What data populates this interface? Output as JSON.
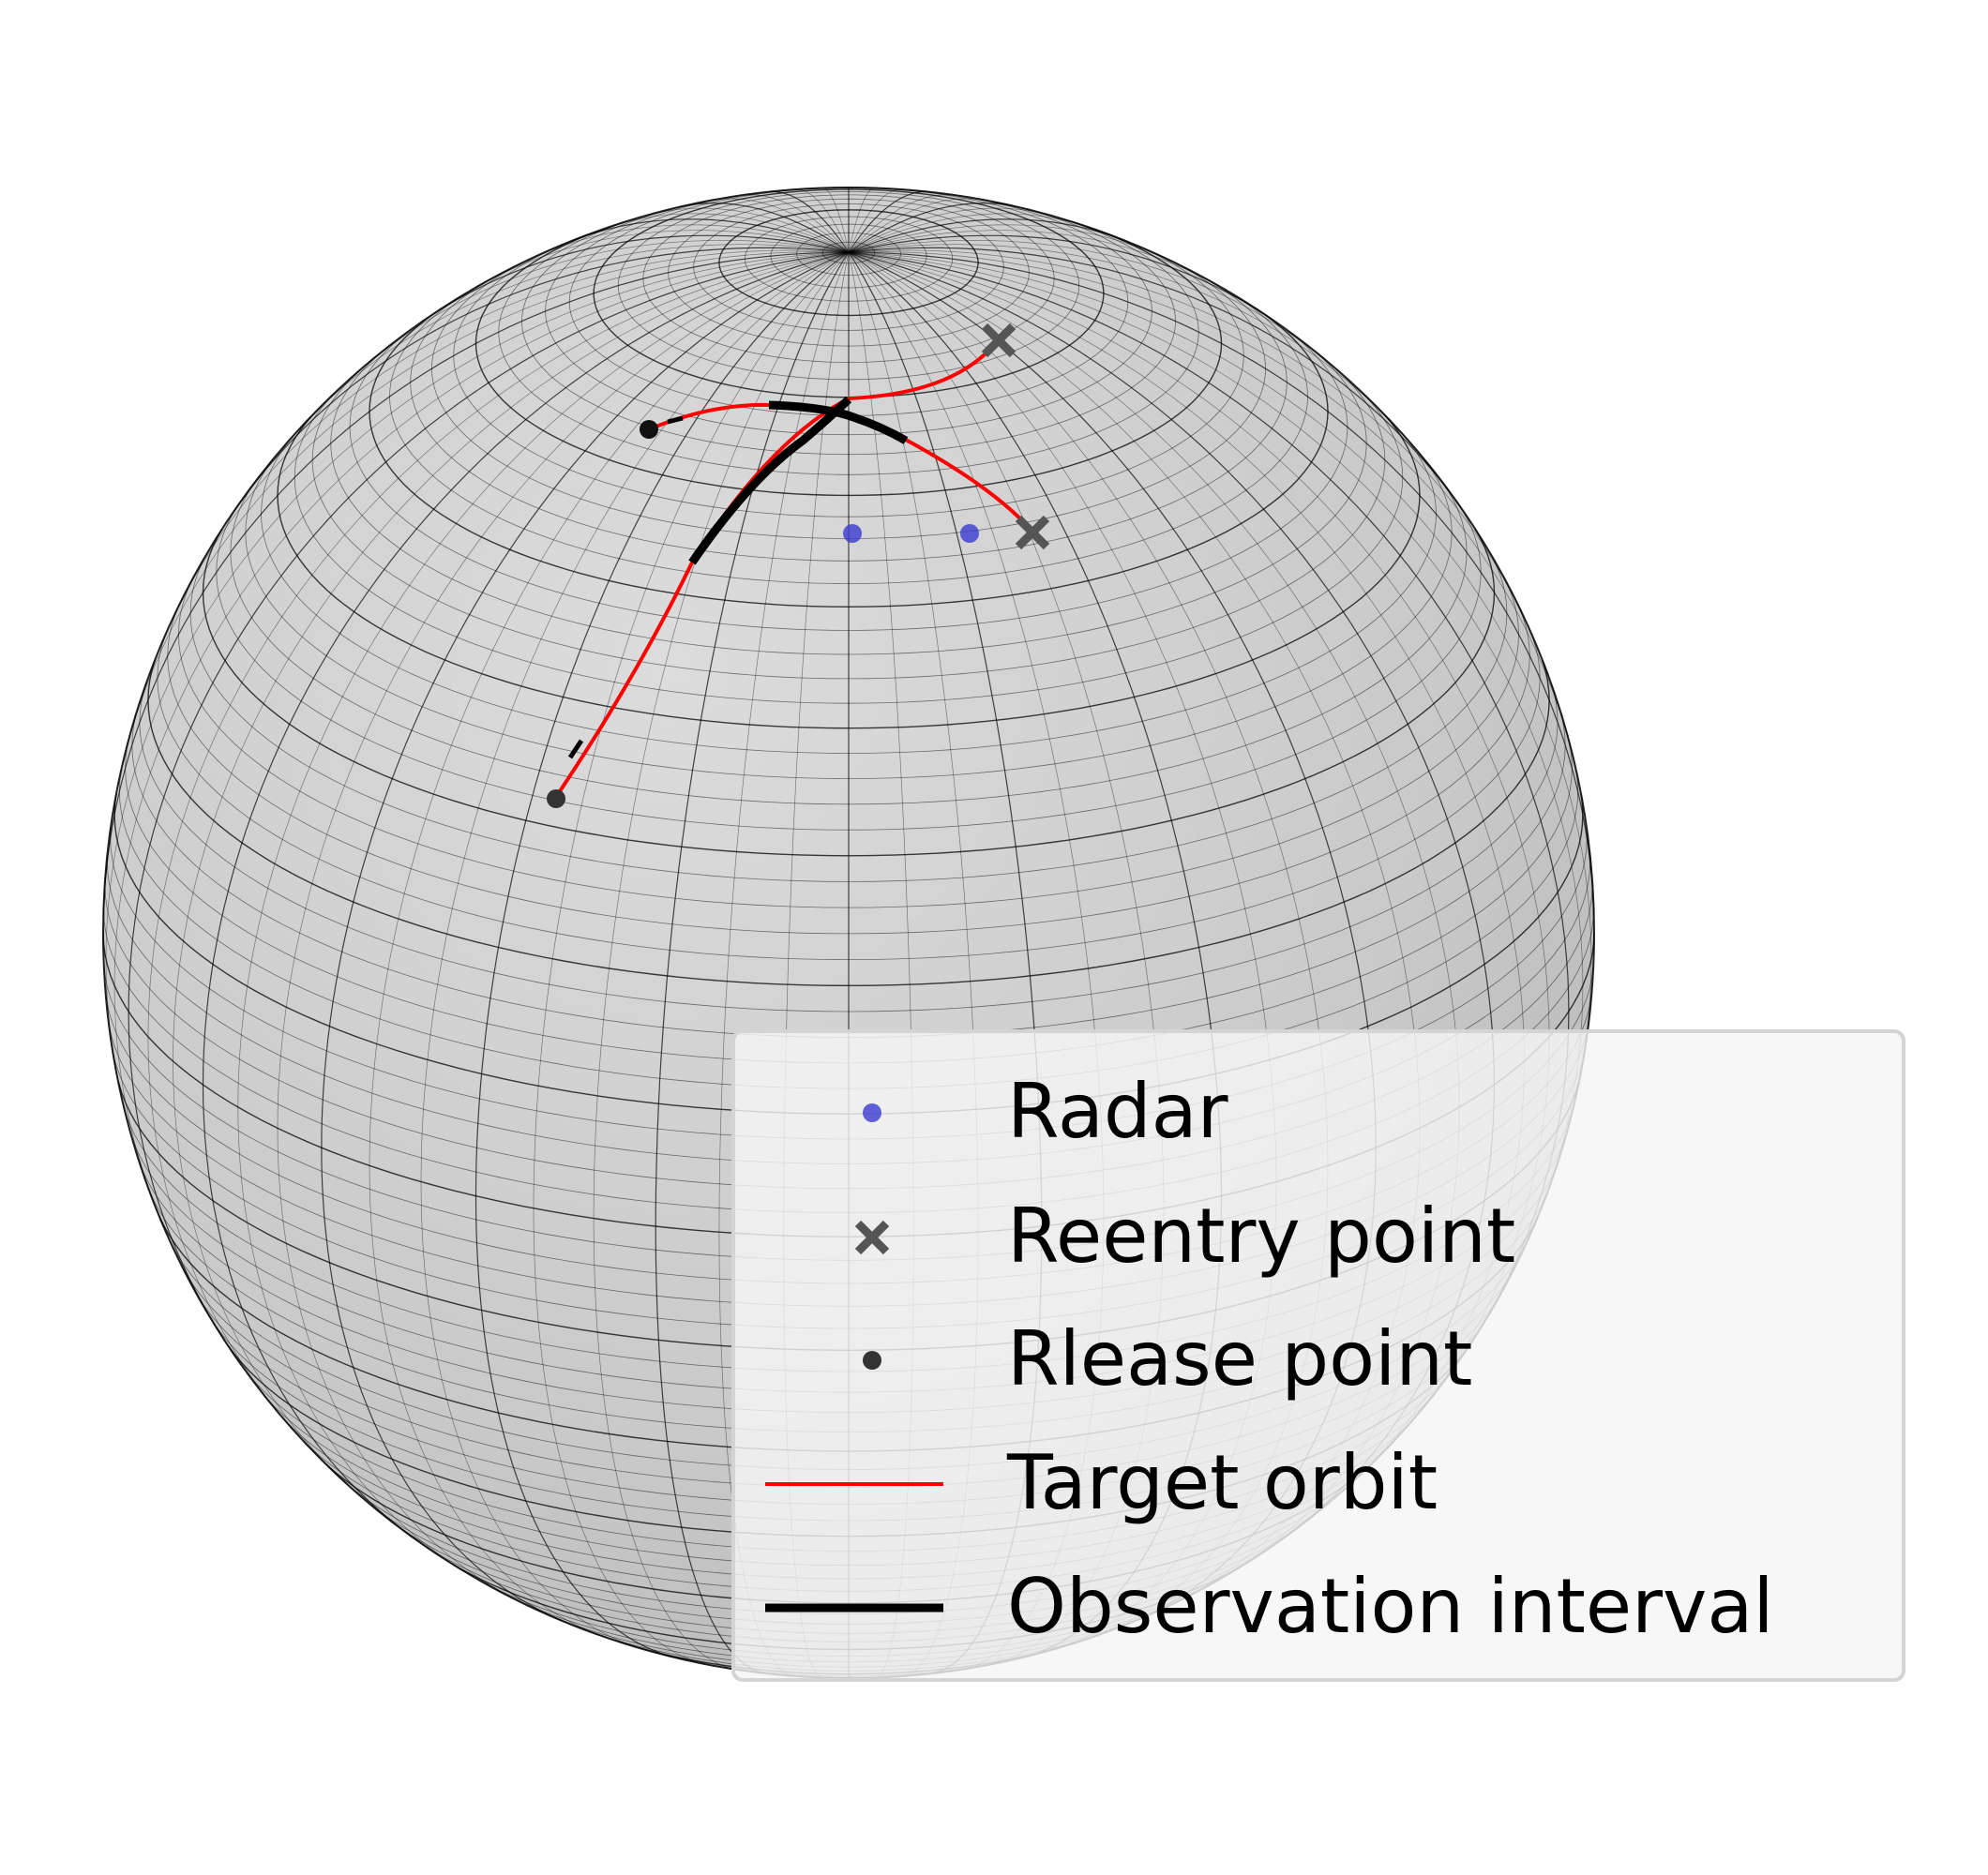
{
  "figure": {
    "colors": {
      "sphere_fill": "#cfcfcf",
      "grid_line": "#000000",
      "radar": "#3a3ad0",
      "reentry": "#555555",
      "release": "#333333",
      "orbit": "#ff0000",
      "observation": "#000000"
    }
  },
  "legend": {
    "items": [
      {
        "label": "Radar",
        "symbol": "blue-dot"
      },
      {
        "label": "Reentry point",
        "symbol": "gray-x"
      },
      {
        "label": "Rlease point",
        "symbol": "dark-dot"
      },
      {
        "label": "Target orbit",
        "symbol": "red-line"
      },
      {
        "label": "Observation interval",
        "symbol": "black-thick-line"
      }
    ]
  }
}
